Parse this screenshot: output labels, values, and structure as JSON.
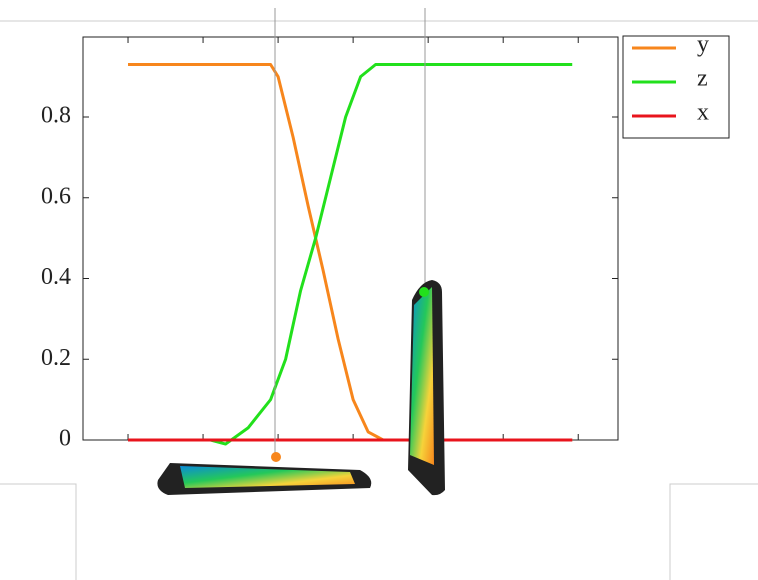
{
  "chart_data": {
    "type": "line",
    "xlim": [
      -0.6,
      6.53
    ],
    "xticks": [
      0,
      1,
      2,
      3,
      4,
      5,
      6
    ],
    "ylim": [
      0,
      1.0
    ],
    "yticks": [
      0,
      0.2,
      0.4,
      0.6,
      0.8
    ],
    "series": [
      {
        "name": "y",
        "color": "#f7861c",
        "x": [
          0,
          1.9,
          2.0,
          2.2,
          2.4,
          2.5,
          2.6,
          2.8,
          3.0,
          3.2,
          3.4,
          5.92
        ],
        "values": [
          0.93,
          0.93,
          0.9,
          0.75,
          0.58,
          0.5,
          0.42,
          0.25,
          0.1,
          0.02,
          0,
          0
        ]
      },
      {
        "name": "z",
        "color": "#22e01c",
        "x": [
          1.1,
          1.3,
          1.6,
          1.9,
          2.1,
          2.3,
          2.5,
          2.7,
          2.9,
          3.1,
          3.3,
          5.92
        ],
        "values": [
          0,
          -0.01,
          0.03,
          0.1,
          0.2,
          0.37,
          0.5,
          0.65,
          0.8,
          0.9,
          0.93,
          0.93
        ]
      },
      {
        "name": "x",
        "color": "#e8141c",
        "x": [
          0,
          5.92
        ],
        "values": [
          0,
          0
        ]
      }
    ]
  }
}
